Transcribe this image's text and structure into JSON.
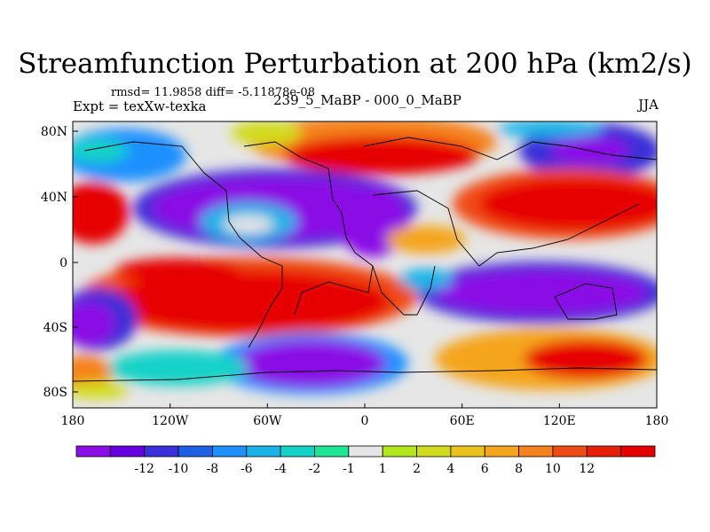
{
  "title": "Streamfunction Perturbation at 200 hPa (km2/s)",
  "stats": "rmsd= 11.9858 diff= -5.11878e-08",
  "experiment": "Expt = texXw-texka",
  "comparison": "239_5_MaBP - 000_0_MaBP",
  "season": "JJA",
  "axes": {
    "lon_ticks": [
      "180",
      "120W",
      "60W",
      "0",
      "60E",
      "120E",
      "180"
    ],
    "lat_ticks": [
      "80N",
      "40N",
      "0",
      "40S",
      "80S"
    ]
  },
  "colorbar": {
    "labels": [
      "-12",
      "-10",
      "-8",
      "-6",
      "-4",
      "-2",
      "-1",
      "1",
      "2",
      "4",
      "6",
      "8",
      "10",
      "12"
    ],
    "colors": [
      "#8b0ee6",
      "#6600e0",
      "#3a2fd8",
      "#1e5fe6",
      "#1e90ff",
      "#19b3e8",
      "#14d2c8",
      "#1ee694",
      "#e6e6e6",
      "#b4e61e",
      "#d2dc1e",
      "#ebc31e",
      "#f5a51e",
      "#f5821e",
      "#f04b14",
      "#e61e0a",
      "#e60000"
    ]
  }
}
